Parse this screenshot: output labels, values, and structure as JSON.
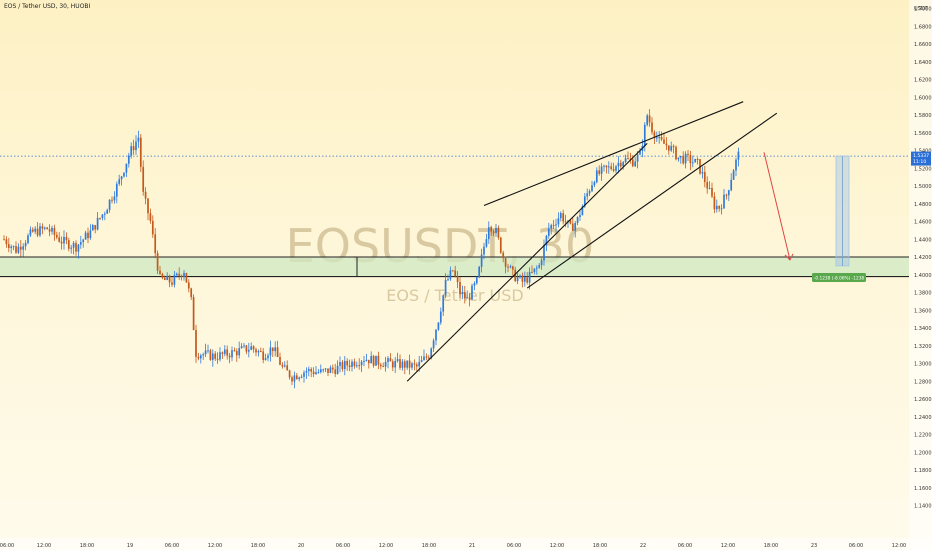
{
  "header": {
    "symbol_title": "EOS / Tether USD, 30, HUOBI"
  },
  "watermark": {
    "ticker": "EOSUSDT, 30",
    "name": "EOS / Tether USD"
  },
  "price_axis": {
    "unit": "USDT",
    "current_price": "1.5337",
    "countdown": "11:10"
  },
  "measure": {
    "label": "-0.1238 (-8.06%) -1238"
  },
  "colors": {
    "up": "#2f7bdc",
    "down": "#c4591a",
    "zone_fill": "#cfe8c3",
    "trendline": "#111111",
    "arrow": "#e04646",
    "measure": "#9fc3e7",
    "measure_label_bg": "#5aa84c",
    "price_badge": "#2b6fd6"
  },
  "chart_data": {
    "type": "candlestick",
    "title": "EOS / Tether USD, 30, HUOBI",
    "ylim": [
      1.14,
      1.72
    ],
    "y_ticks": [
      "1.7000",
      "1.6800",
      "1.6600",
      "1.6400",
      "1.6200",
      "1.6000",
      "1.5800",
      "1.5600",
      "1.5400",
      "1.5200",
      "1.5000",
      "1.4800",
      "1.4600",
      "1.4400",
      "1.4200",
      "1.4000",
      "1.3800",
      "1.3600",
      "1.3400",
      "1.3200",
      "1.3000",
      "1.2800",
      "1.2600",
      "1.2400",
      "1.2200",
      "1.2000",
      "1.1800",
      "1.1600",
      "1.1400"
    ],
    "x_ticks": [
      "06:00",
      "12:00",
      "18:00",
      "19",
      "06:00",
      "12:00",
      "18:00",
      "20",
      "06:00",
      "12:00",
      "18:00",
      "21",
      "06:00",
      "12:00",
      "18:00",
      "22",
      "06:00",
      "12:00",
      "18:00",
      "23",
      "06:00",
      "12:00"
    ],
    "support_zone": [
      1.398,
      1.42
    ],
    "current_price": 1.5337,
    "waypoints": [
      [
        0,
        1.44
      ],
      [
        5,
        1.428
      ],
      [
        12,
        1.448
      ],
      [
        18,
        1.452
      ],
      [
        24,
        1.438
      ],
      [
        30,
        1.432
      ],
      [
        36,
        1.448
      ],
      [
        42,
        1.472
      ],
      [
        48,
        1.505
      ],
      [
        52,
        1.535
      ],
      [
        55,
        1.55
      ],
      [
        56,
        1.555
      ],
      [
        58,
        1.49
      ],
      [
        61,
        1.46
      ],
      [
        63,
        1.425
      ],
      [
        65,
        1.395
      ],
      [
        70,
        1.392
      ],
      [
        75,
        1.405
      ],
      [
        78,
        1.37
      ],
      [
        80,
        1.312
      ],
      [
        88,
        1.308
      ],
      [
        95,
        1.312
      ],
      [
        103,
        1.318
      ],
      [
        108,
        1.31
      ],
      [
        112,
        1.318
      ],
      [
        116,
        1.295
      ],
      [
        120,
        1.285
      ],
      [
        126,
        1.292
      ],
      [
        132,
        1.29
      ],
      [
        138,
        1.294
      ],
      [
        144,
        1.3
      ],
      [
        150,
        1.306
      ],
      [
        156,
        1.302
      ],
      [
        162,
        1.3
      ],
      [
        168,
        1.298
      ],
      [
        172,
        1.296
      ],
      [
        177,
        1.31
      ],
      [
        181,
        1.35
      ],
      [
        184,
        1.39
      ],
      [
        187,
        1.405
      ],
      [
        190,
        1.38
      ],
      [
        193,
        1.372
      ],
      [
        197,
        1.392
      ],
      [
        200,
        1.432
      ],
      [
        202,
        1.458
      ],
      [
        205,
        1.448
      ],
      [
        208,
        1.42
      ],
      [
        212,
        1.4
      ],
      [
        216,
        1.392
      ],
      [
        219,
        1.398
      ],
      [
        223,
        1.41
      ],
      [
        227,
        1.452
      ],
      [
        232,
        1.468
      ],
      [
        236,
        1.452
      ],
      [
        239,
        1.462
      ],
      [
        242,
        1.485
      ],
      [
        246,
        1.51
      ],
      [
        250,
        1.518
      ],
      [
        254,
        1.522
      ],
      [
        258,
        1.53
      ],
      [
        262,
        1.528
      ],
      [
        265,
        1.535
      ],
      [
        268,
        1.58
      ],
      [
        270,
        1.565
      ],
      [
        273,
        1.55
      ],
      [
        277,
        1.545
      ],
      [
        281,
        1.532
      ],
      [
        285,
        1.53
      ],
      [
        289,
        1.525
      ],
      [
        293,
        1.5
      ],
      [
        296,
        1.478
      ],
      [
        298,
        1.476
      ],
      [
        301,
        1.49
      ],
      [
        304,
        1.52
      ],
      [
        306,
        1.535
      ]
    ],
    "trendlines": [
      {
        "from": [
          168,
          1.28
        ],
        "to": [
          268,
          1.548
        ]
      },
      {
        "from": [
          200,
          1.478
        ],
        "to": [
          308,
          1.595
        ]
      },
      {
        "from": [
          218,
          1.385
        ],
        "to": [
          322,
          1.582
        ]
      }
    ],
    "measure_range": {
      "from": 1.5337,
      "to": 1.41
    },
    "projection_arrow": {
      "from": 1.538,
      "to": 1.41
    }
  }
}
